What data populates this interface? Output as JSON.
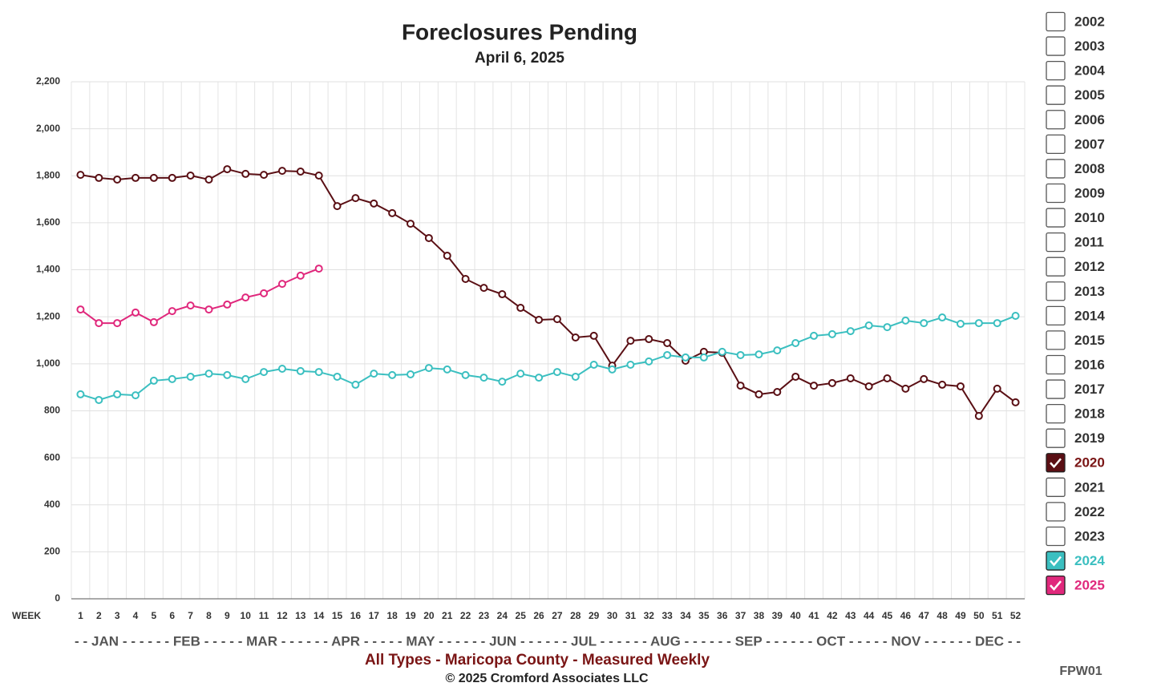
{
  "chart_data": {
    "type": "line",
    "title": "Foreclosures Pending",
    "subtitle": "April 6, 2025",
    "x_label": "WEEK",
    "month_axis": "- - JAN - - - - - - FEB - - - - - MAR - - - - - - APR - - - - - MAY - - - - - - JUN - - - - - - JUL - - - - - - AUG - - - - - - SEP - - - - - - OCT - - - - - NOV - - - - - - DEC - -",
    "footer": "All Types - Maricopa County - Measured Weekly",
    "copyright": "© 2025 Cromford Associates LLC",
    "code": "FPW01",
    "categories": [
      "1",
      "2",
      "3",
      "4",
      "5",
      "6",
      "7",
      "8",
      "9",
      "10",
      "11",
      "12",
      "13",
      "14",
      "15",
      "16",
      "17",
      "18",
      "19",
      "20",
      "21",
      "22",
      "23",
      "24",
      "25",
      "26",
      "27",
      "28",
      "29",
      "30",
      "31",
      "32",
      "33",
      "34",
      "35",
      "36",
      "37",
      "38",
      "39",
      "40",
      "41",
      "42",
      "43",
      "44",
      "45",
      "46",
      "47",
      "48",
      "49",
      "50",
      "51",
      "52"
    ],
    "series": [
      {
        "name": "2020",
        "color": "#5a0f14",
        "values": [
          1804,
          1791,
          1784,
          1791,
          1791,
          1791,
          1801,
          1784,
          1828,
          1808,
          1804,
          1821,
          1818,
          1801,
          1671,
          1705,
          1682,
          1641,
          1596,
          1535,
          1460,
          1361,
          1323,
          1296,
          1238,
          1187,
          1190,
          1112,
          1119,
          992,
          1098,
          1105,
          1088,
          1013,
          1051,
          1047,
          907,
          870,
          880,
          945,
          907,
          918,
          938,
          904,
          938,
          894,
          935,
          911,
          904,
          778,
          894,
          836
        ]
      },
      {
        "name": "2024",
        "color": "#3bbfc0",
        "values": [
          870,
          846,
          870,
          866,
          928,
          935,
          945,
          958,
          952,
          935,
          965,
          979,
          969,
          965,
          945,
          911,
          958,
          952,
          955,
          982,
          976,
          952,
          941,
          924,
          958,
          941,
          965,
          945,
          996,
          976,
          996,
          1010,
          1037,
          1027,
          1027,
          1051,
          1037,
          1040,
          1057,
          1088,
          1119,
          1126,
          1139,
          1163,
          1156,
          1184,
          1173,
          1197,
          1170,
          1173,
          1173,
          1204
        ]
      },
      {
        "name": "2025",
        "color": "#e0287c",
        "values": [
          1231,
          1173,
          1173,
          1218,
          1177,
          1224,
          1248,
          1231,
          1252,
          1282,
          1300,
          1340,
          1375,
          1405,
          null,
          null,
          null,
          null,
          null,
          null,
          null,
          null,
          null,
          null,
          null,
          null,
          null,
          null,
          null,
          null,
          null,
          null,
          null,
          null,
          null,
          null,
          null,
          null,
          null,
          null,
          null,
          null,
          null,
          null,
          null,
          null,
          null,
          null,
          null,
          null,
          null,
          null
        ]
      }
    ],
    "legend_unchecked": [
      "2002",
      "2003",
      "2004",
      "2005",
      "2006",
      "2007",
      "2008",
      "2009",
      "2010",
      "2011",
      "2012",
      "2013",
      "2014",
      "2015",
      "2016",
      "2017",
      "2018",
      "2019",
      "2021",
      "2022",
      "2023"
    ],
    "ylim": [
      0,
      2200
    ],
    "yticks": [
      0,
      200,
      400,
      600,
      800,
      {
        "value": 1000,
        "label": "1,000"
      },
      {
        "value": 1200,
        "label": "1,200"
      },
      {
        "value": 1400,
        "label": "1,400"
      },
      {
        "value": 1600,
        "label": "1,600"
      },
      {
        "value": 1800,
        "label": "1,800"
      },
      {
        "value": 2000,
        "label": "2,000"
      },
      {
        "value": 2200,
        "label": "2,200"
      }
    ],
    "grid": true
  }
}
